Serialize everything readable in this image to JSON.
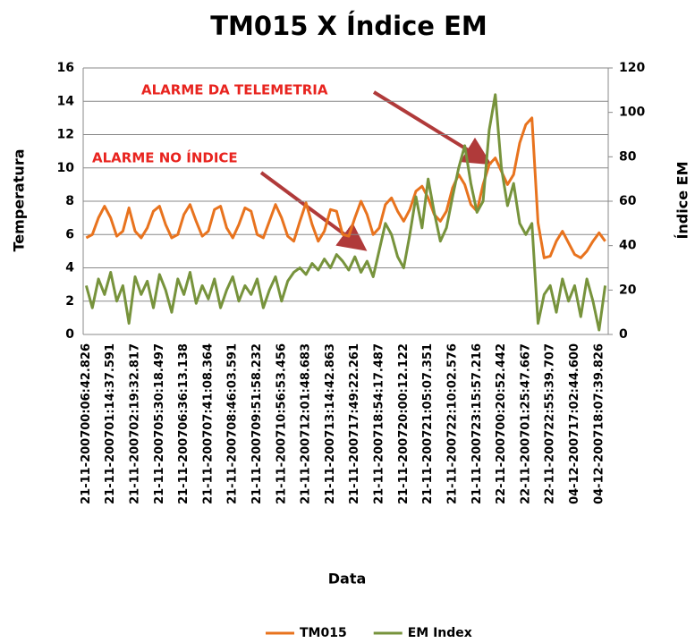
{
  "chart_data": {
    "type": "line",
    "title": "TM015 X Índice EM",
    "x_label": "Data",
    "y_label": "Temperatura",
    "y2_label": "Índice EM",
    "categories": [
      "21-11-200700:06:42.826",
      null,
      null,
      null,
      "21-11-200701:14:37.591",
      null,
      null,
      null,
      "21-11-200702:19:32.817",
      null,
      null,
      null,
      "21-11-200705:30:18.497",
      null,
      null,
      null,
      "21-11-200706:36:13.138",
      null,
      null,
      null,
      "21-11-200707:41:08.364",
      null,
      null,
      null,
      "21-11-200708:46:03.591",
      null,
      null,
      null,
      "21-11-200709:51:58.232",
      null,
      null,
      null,
      "21-11-200710:56:53.456",
      null,
      null,
      null,
      "21-11-200712:01:48.683",
      null,
      null,
      null,
      "21-11-200713:14:42.863",
      null,
      null,
      null,
      "21-11-200717:49:22.261",
      null,
      null,
      null,
      "21-11-200718:54:17.487",
      null,
      null,
      null,
      "21-11-200720:00:12.122",
      null,
      null,
      null,
      "21-11-200721:05:07.351",
      null,
      null,
      null,
      "21-11-200722:10:02.576",
      null,
      null,
      null,
      "21-11-200723:15:57.216",
      null,
      null,
      null,
      "22-11-200700:20:52.442",
      null,
      null,
      null,
      "22-11-200701:25:47.667",
      null,
      null,
      null,
      "22-11-200722:55:39.707",
      null,
      null,
      null,
      "04-12-200717:02:44.600",
      null,
      null,
      null,
      "04-12-200718:07:39.826",
      null
    ],
    "series": [
      {
        "name": "TM015",
        "color": "#e8731e",
        "values": [
          5.8,
          6.0,
          7.0,
          7.7,
          7.0,
          5.9,
          6.2,
          7.6,
          6.2,
          5.8,
          6.4,
          7.4,
          7.7,
          6.6,
          5.8,
          6.0,
          7.2,
          7.8,
          6.8,
          5.9,
          6.2,
          7.5,
          7.7,
          6.4,
          5.8,
          6.6,
          7.6,
          7.4,
          6.0,
          5.8,
          6.8,
          7.8,
          7.0,
          5.9,
          5.6,
          6.8,
          7.9,
          6.6,
          5.6,
          6.2,
          7.5,
          7.4,
          6.0,
          5.9,
          7.0,
          8.0,
          7.2,
          6.0,
          6.4,
          7.8,
          8.2,
          7.4,
          6.8,
          7.5,
          8.6,
          8.9,
          8.2,
          7.2,
          6.8,
          7.4,
          8.8,
          9.6,
          9.0,
          7.8,
          7.4,
          9.0,
          10.2,
          10.6,
          9.8,
          9.0,
          9.6,
          11.5,
          12.6,
          13.0,
          6.7,
          4.6,
          4.7,
          5.6,
          6.2,
          5.5,
          4.8,
          4.6,
          5.0,
          5.6,
          6.1,
          5.6
        ]
      },
      {
        "name": "EM Index",
        "color": "#77933c",
        "axis": "y2",
        "values": [
          22,
          12,
          25,
          18,
          28,
          15,
          22,
          5,
          26,
          18,
          24,
          12,
          27,
          20,
          10,
          25,
          18,
          28,
          14,
          22,
          16,
          25,
          12,
          20,
          26,
          15,
          22,
          18,
          25,
          12,
          20,
          26,
          15,
          24,
          28,
          30,
          27,
          32,
          29,
          34,
          30,
          36,
          33,
          29,
          35,
          28,
          33,
          26,
          38,
          50,
          45,
          35,
          30,
          45,
          62,
          48,
          70,
          55,
          42,
          48,
          62,
          75,
          85,
          68,
          55,
          60,
          92,
          108,
          75,
          58,
          68,
          50,
          45,
          50,
          5,
          18,
          22,
          10,
          25,
          15,
          22,
          8,
          25,
          15,
          2,
          22
        ]
      }
    ],
    "ylim": [
      0,
      16
    ],
    "yticks": [
      0,
      2,
      4,
      6,
      8,
      10,
      12,
      14,
      16
    ],
    "y2lim": [
      0,
      120
    ],
    "y2ticks": [
      0,
      20,
      40,
      60,
      80,
      100,
      120
    ],
    "grid": true,
    "legend": "bottom",
    "annotations": [
      "ALARME DA TELEMETRIA",
      "ALARME NO ÍNDICE"
    ]
  }
}
